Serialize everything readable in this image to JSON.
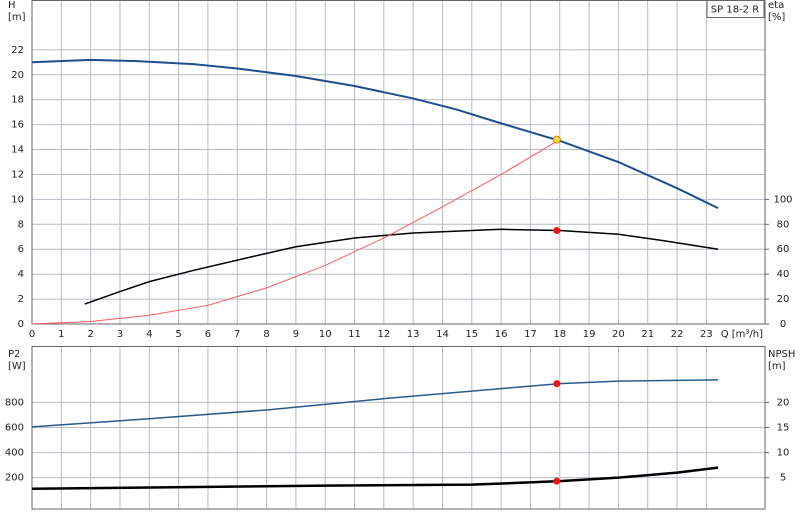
{
  "chart_data": [
    {
      "type": "line",
      "title": "SP 18-2 R",
      "y_label": [
        "H",
        "[m]"
      ],
      "y2_label": [
        "eta",
        "[%]"
      ],
      "x_label": "Q [m³/h]",
      "xlim": [
        0,
        25
      ],
      "xticks": [
        0,
        1,
        2,
        3,
        4,
        5,
        6,
        7,
        8,
        9,
        10,
        11,
        12,
        13,
        14,
        15,
        16,
        17,
        18,
        19,
        20,
        21,
        22,
        23
      ],
      "ylim": [
        0,
        26
      ],
      "yticks": [
        0,
        2,
        4,
        6,
        8,
        10,
        12,
        14,
        16,
        18,
        20,
        22
      ],
      "y2lim": [
        0,
        260
      ],
      "y2ticks": [
        0,
        20,
        40,
        60,
        80,
        100
      ],
      "grid": true,
      "series": [
        {
          "color": "#1f4e8c",
          "width": 2,
          "x": [
            0,
            2,
            3.5,
            5.5,
            7,
            9,
            11,
            13,
            14.5,
            16,
            18,
            20,
            22,
            23.4
          ],
          "values": [
            21.0,
            21.2,
            21.1,
            20.85,
            20.5,
            19.9,
            19.1,
            18.1,
            17.2,
            16.1,
            14.7,
            13.0,
            10.9,
            9.3
          ]
        },
        {
          "color": "#000000",
          "width": 1.5,
          "axis": "y2",
          "x": [
            1.8,
            3,
            4,
            5.5,
            7.5,
            9,
            11,
            13,
            14.5,
            16,
            18,
            20,
            21.5,
            23.4
          ],
          "values": [
            16,
            26,
            34,
            43,
            54,
            62,
            69,
            73,
            74.5,
            76,
            75,
            72,
            67,
            60
          ]
        },
        {
          "color": "#ff5a5a",
          "width": 1,
          "x": [
            0,
            2,
            4,
            6,
            8,
            10,
            12,
            14,
            16,
            18
          ],
          "values": [
            0,
            0.2,
            0.7,
            1.5,
            2.9,
            4.7,
            6.9,
            9.4,
            12.0,
            14.8
          ]
        }
      ],
      "points": [
        {
          "x": 17.9,
          "y": 14.8,
          "color": "#ffd23f"
        },
        {
          "x": 17.9,
          "y": 75,
          "color": "#e81818",
          "axis": "y2"
        }
      ]
    },
    {
      "type": "line",
      "y_label": [
        "P2",
        "[W]"
      ],
      "y2_label": [
        "NPSH",
        "[m]"
      ],
      "xlim": [
        0,
        25
      ],
      "xticks": [
        0,
        1,
        2,
        3,
        4,
        5,
        6,
        7,
        8,
        9,
        10,
        11,
        12,
        13,
        14,
        15,
        16,
        17,
        18,
        19,
        20,
        21,
        22,
        23
      ],
      "xtick_labels": false,
      "ylim": [
        -50,
        1250
      ],
      "yticks": [
        200,
        400,
        600,
        800
      ],
      "y2lim": [
        -1.25,
        31.25
      ],
      "y2ticks": [
        5,
        10,
        15,
        20
      ],
      "grid": true,
      "series": [
        {
          "color": "#2a5a8a",
          "width": 1.5,
          "x": [
            0,
            4,
            8,
            12,
            16,
            18,
            20,
            23.4
          ],
          "values": [
            605,
            670,
            740,
            830,
            910,
            950,
            970,
            980
          ]
        },
        {
          "color": "#000000",
          "width": 2.5,
          "axis": "y2",
          "x": [
            0,
            10,
            15,
            18,
            20,
            22,
            23.4
          ],
          "values": [
            2.8,
            3.4,
            3.6,
            4.3,
            5.0,
            6.0,
            7.0
          ]
        }
      ],
      "points": [
        {
          "x": 17.9,
          "y": 950,
          "color": "#e81818"
        },
        {
          "x": 17.9,
          "y": 4.3,
          "color": "#e81818",
          "axis": "y2"
        }
      ]
    }
  ]
}
